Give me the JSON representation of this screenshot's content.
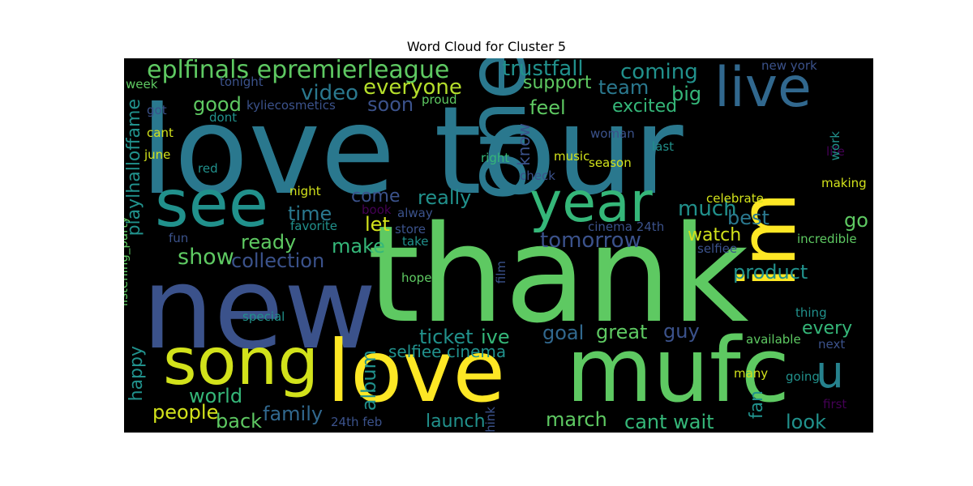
{
  "chart_data": {
    "type": "wordcloud",
    "title": "Word Cloud for Cluster 5",
    "background": "#000000",
    "colormap": "viridis",
    "words": [
      {
        "text": "love tour",
        "weight": 1.0,
        "color": "#2a788e"
      },
      {
        "text": "thank",
        "weight": 0.95,
        "color": "#5ec962"
      },
      {
        "text": "new",
        "weight": 0.9,
        "color": "#3b528b"
      },
      {
        "text": "love",
        "weight": 0.8,
        "color": "#fde725"
      },
      {
        "text": "mufc",
        "weight": 0.78,
        "color": "#5ec962"
      },
      {
        "text": "one",
        "weight": 0.72,
        "color": "#2a788e"
      },
      {
        "text": "im",
        "weight": 0.7,
        "color": "#fde725"
      },
      {
        "text": "see",
        "weight": 0.55,
        "color": "#21918c"
      },
      {
        "text": "song",
        "weight": 0.55,
        "color": "#d2e21b"
      },
      {
        "text": "live",
        "weight": 0.5,
        "color": "#31688e"
      },
      {
        "text": "year",
        "weight": 0.5,
        "color": "#35b779"
      },
      {
        "text": "u",
        "weight": 0.4,
        "color": "#26828e"
      },
      {
        "text": "eplfinals epremierleague",
        "weight": 0.25,
        "color": "#5ec962"
      },
      {
        "text": "trustfall",
        "weight": 0.18,
        "color": "#21918c"
      },
      {
        "text": "coming",
        "weight": 0.18,
        "color": "#21918c"
      },
      {
        "text": "video",
        "weight": 0.18,
        "color": "#2a788e"
      },
      {
        "text": "everyone",
        "weight": 0.18,
        "color": "#b5de2b"
      },
      {
        "text": "support",
        "weight": 0.15,
        "color": "#5ec962"
      },
      {
        "text": "team",
        "weight": 0.17,
        "color": "#2a788e"
      },
      {
        "text": "big",
        "weight": 0.17,
        "color": "#35b779"
      },
      {
        "text": "good",
        "weight": 0.17,
        "color": "#5ec962"
      },
      {
        "text": "soon",
        "weight": 0.17,
        "color": "#3b528b"
      },
      {
        "text": "feel",
        "weight": 0.17,
        "color": "#5ec962"
      },
      {
        "text": "excited",
        "weight": 0.16,
        "color": "#35b779"
      },
      {
        "text": "playlhalloffame",
        "weight": 0.16,
        "color": "#21918c"
      },
      {
        "text": "really",
        "weight": 0.17,
        "color": "#21918c"
      },
      {
        "text": "much",
        "weight": 0.19,
        "color": "#21918c"
      },
      {
        "text": "time",
        "weight": 0.17,
        "color": "#2a788e"
      },
      {
        "text": "let",
        "weight": 0.18,
        "color": "#d2e21b"
      },
      {
        "text": "best",
        "weight": 0.18,
        "color": "#2a788e"
      },
      {
        "text": "go",
        "weight": 0.18,
        "color": "#5ec962"
      },
      {
        "text": "tomorrow",
        "weight": 0.19,
        "color": "#3b528b"
      },
      {
        "text": "ready",
        "weight": 0.17,
        "color": "#5ec962"
      },
      {
        "text": "make",
        "weight": 0.17,
        "color": "#35b779"
      },
      {
        "text": "watch",
        "weight": 0.17,
        "color": "#d2e21b"
      },
      {
        "text": "show",
        "weight": 0.19,
        "color": "#5ec962"
      },
      {
        "text": "collection",
        "weight": 0.17,
        "color": "#3b528b"
      },
      {
        "text": "product",
        "weight": 0.18,
        "color": "#21918c"
      },
      {
        "text": "ticket",
        "weight": 0.17,
        "color": "#21918c"
      },
      {
        "text": "ive",
        "weight": 0.17,
        "color": "#35b779"
      },
      {
        "text": "goal",
        "weight": 0.17,
        "color": "#31688e"
      },
      {
        "text": "great",
        "weight": 0.18,
        "color": "#5ec962"
      },
      {
        "text": "guy",
        "weight": 0.17,
        "color": "#3b528b"
      },
      {
        "text": "every",
        "weight": 0.16,
        "color": "#35b779"
      },
      {
        "text": "selfiee cinema",
        "weight": 0.15,
        "color": "#21918c"
      },
      {
        "text": "happy",
        "weight": 0.16,
        "color": "#21918c"
      },
      {
        "text": "album",
        "weight": 0.16,
        "color": "#21918c"
      },
      {
        "text": "world",
        "weight": 0.17,
        "color": "#35b779"
      },
      {
        "text": "people",
        "weight": 0.17,
        "color": "#d2e21b"
      },
      {
        "text": "back",
        "weight": 0.17,
        "color": "#5ec962"
      },
      {
        "text": "family",
        "weight": 0.17,
        "color": "#31688e"
      },
      {
        "text": "launch",
        "weight": 0.16,
        "color": "#21918c"
      },
      {
        "text": "march",
        "weight": 0.18,
        "color": "#5ec962"
      },
      {
        "text": "cant wait",
        "weight": 0.18,
        "color": "#35b779"
      },
      {
        "text": "fan",
        "weight": 0.17,
        "color": "#21918c"
      },
      {
        "text": "look",
        "weight": 0.17,
        "color": "#21918c"
      },
      {
        "text": "come",
        "weight": 0.15,
        "color": "#3b528b"
      },
      {
        "text": "know",
        "weight": 0.15,
        "color": "#3b528b"
      },
      {
        "text": "listening_party",
        "weight": 0.12,
        "color": "#5ec962"
      },
      {
        "text": "week",
        "weight": 0.09,
        "color": "#5ec962"
      },
      {
        "text": "tonight",
        "weight": 0.09,
        "color": "#3b528b"
      },
      {
        "text": "kyliecosmetics",
        "weight": 0.09,
        "color": "#3b528b"
      },
      {
        "text": "proud",
        "weight": 0.09,
        "color": "#5ec962"
      },
      {
        "text": "new york",
        "weight": 0.1,
        "color": "#3b528b"
      },
      {
        "text": "got",
        "weight": 0.09,
        "color": "#3b528b"
      },
      {
        "text": "dont",
        "weight": 0.09,
        "color": "#21918c"
      },
      {
        "text": "cant",
        "weight": 0.09,
        "color": "#d2e21b"
      },
      {
        "text": "june",
        "weight": 0.09,
        "color": "#d2e21b"
      },
      {
        "text": "red",
        "weight": 0.09,
        "color": "#21918c"
      },
      {
        "text": "night",
        "weight": 0.09,
        "color": "#d2e21b"
      },
      {
        "text": "favorite",
        "weight": 0.09,
        "color": "#21918c"
      },
      {
        "text": "fun",
        "weight": 0.09,
        "color": "#3b528b"
      },
      {
        "text": "book",
        "weight": 0.09,
        "color": "#440154"
      },
      {
        "text": "alway",
        "weight": 0.09,
        "color": "#3b528b"
      },
      {
        "text": "store",
        "weight": 0.09,
        "color": "#3b528b"
      },
      {
        "text": "take",
        "weight": 0.09,
        "color": "#21918c"
      },
      {
        "text": "hope",
        "weight": 0.09,
        "color": "#5ec962"
      },
      {
        "text": "film",
        "weight": 0.09,
        "color": "#3b528b"
      },
      {
        "text": "special",
        "weight": 0.09,
        "color": "#21918c"
      },
      {
        "text": "24th feb",
        "weight": 0.09,
        "color": "#3b528b"
      },
      {
        "text": "think",
        "weight": 0.09,
        "color": "#3b528b"
      },
      {
        "text": "woman",
        "weight": 0.09,
        "color": "#3b528b"
      },
      {
        "text": "right",
        "weight": 0.09,
        "color": "#35b779"
      },
      {
        "text": "music",
        "weight": 0.09,
        "color": "#d2e21b"
      },
      {
        "text": "check",
        "weight": 0.09,
        "color": "#3b528b"
      },
      {
        "text": "last",
        "weight": 0.09,
        "color": "#21918c"
      },
      {
        "text": "season",
        "weight": 0.09,
        "color": "#d2e21b"
      },
      {
        "text": "cinema 24th",
        "weight": 0.09,
        "color": "#3b528b"
      },
      {
        "text": "celebrate",
        "weight": 0.09,
        "color": "#d2e21b"
      },
      {
        "text": "life",
        "weight": 0.09,
        "color": "#440154"
      },
      {
        "text": "work",
        "weight": 0.09,
        "color": "#21918c"
      },
      {
        "text": "making",
        "weight": 0.09,
        "color": "#d2e21b"
      },
      {
        "text": "incredible",
        "weight": 0.09,
        "color": "#5ec962"
      },
      {
        "text": "selfiee",
        "weight": 0.09,
        "color": "#3b528b"
      },
      {
        "text": "thing",
        "weight": 0.09,
        "color": "#21918c"
      },
      {
        "text": "available",
        "weight": 0.09,
        "color": "#5ec962"
      },
      {
        "text": "next",
        "weight": 0.09,
        "color": "#3b528b"
      },
      {
        "text": "many",
        "weight": 0.09,
        "color": "#d2e21b"
      },
      {
        "text": "going",
        "weight": 0.09,
        "color": "#21918c"
      },
      {
        "text": "first",
        "weight": 0.09,
        "color": "#440154"
      }
    ]
  }
}
